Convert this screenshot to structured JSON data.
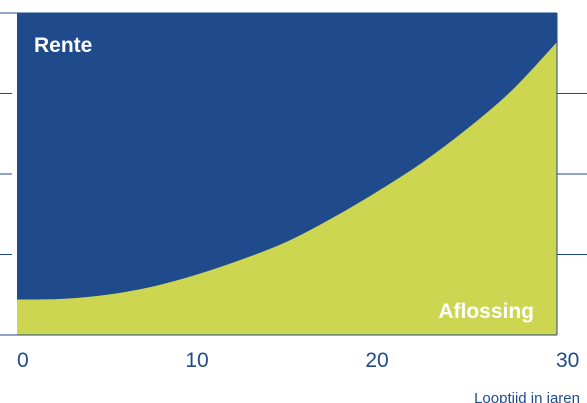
{
  "chart_data": {
    "type": "area",
    "title": "",
    "xlabel": "Looptijd in jaren",
    "ylabel": "",
    "xlim": [
      0,
      30
    ],
    "ylim": [
      0,
      1
    ],
    "x_ticks": [
      "0",
      "10",
      "20",
      "30"
    ],
    "y_gridlines": [
      0.25,
      0.5,
      0.75
    ],
    "x": [
      0,
      2.5,
      5,
      7.5,
      10,
      12.5,
      15,
      17.5,
      20,
      22.5,
      25,
      27.5,
      30
    ],
    "series": [
      {
        "name": "Aflossing",
        "values": [
          0.11,
          0.112,
          0.125,
          0.15,
          0.188,
          0.235,
          0.29,
          0.363,
          0.445,
          0.535,
          0.64,
          0.76,
          0.91
        ]
      },
      {
        "name": "Rente",
        "values": [
          0.89,
          0.888,
          0.875,
          0.85,
          0.812,
          0.765,
          0.71,
          0.637,
          0.555,
          0.465,
          0.36,
          0.24,
          0.09
        ]
      }
    ],
    "stacked": true,
    "colors": {
      "Rente": "#1f4a8c",
      "Aflossing": "#cdd651",
      "axis": "#1f4a8c",
      "text": "#1f4a8c"
    },
    "legend": "in-plot labels (Rente top-left, Aflossing bottom-right)"
  }
}
